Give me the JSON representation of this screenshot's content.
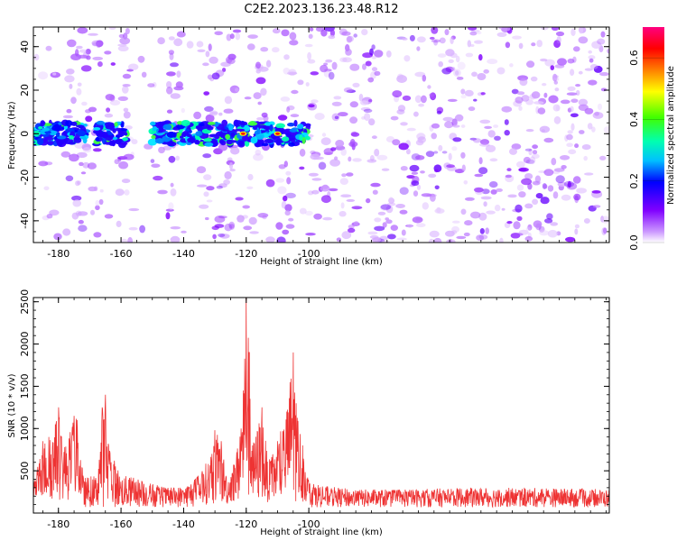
{
  "title": "C2E2.2023.136.23.48.R12",
  "chart_data": [
    {
      "type": "heatmap",
      "xlabel": "Height of straight line (km)",
      "ylabel": "Frequency (Hz)",
      "xlim": [
        -188,
        -4
      ],
      "ylim": [
        -50,
        49
      ],
      "xticks": [
        -180,
        -160,
        -140,
        -120,
        -100
      ],
      "yticks": [
        -40,
        -20,
        0,
        20,
        40
      ],
      "xtick_labels": [
        "-180",
        "-160",
        "-140",
        "-120",
        "-100"
      ],
      "ytick_labels": [
        "-40",
        "-20",
        "0",
        "20",
        "40"
      ],
      "colorbar": {
        "label": "Normalized spectral amplitude",
        "range": [
          0.0,
          0.7
        ],
        "ticks": [
          0.0,
          0.2,
          0.4,
          0.6
        ],
        "tick_labels": [
          "0.0",
          "0.2",
          "0.4",
          "0.6"
        ],
        "colors": [
          "#ffffff",
          "#cc99ff",
          "#8000ff",
          "#0000ff",
          "#00c0ff",
          "#00ffb0",
          "#40ff00",
          "#ffff00",
          "#ff8000",
          "#ff0000",
          "#ff0080"
        ]
      },
      "band": {
        "center_frequency": 0,
        "half_width_hz": 5,
        "segments": [
          [
            -188,
            -171
          ],
          [
            -168,
            -158
          ],
          [
            -150,
            -100
          ]
        ],
        "peak_near_km": [
          -110,
          -121
        ]
      },
      "vertical_streaks_km": [
        -175,
        -170,
        -158,
        -143,
        -131,
        -128,
        -124,
        -116,
        -107
      ]
    },
    {
      "type": "line",
      "xlabel": "Height of straight line (km)",
      "ylabel": "SNR (10 * v/v)",
      "xlim": [
        -188,
        -4
      ],
      "ylim": [
        0,
        2550
      ],
      "xticks": [
        -180,
        -160,
        -140,
        -120,
        -100
      ],
      "yticks": [
        500,
        1000,
        1500,
        2000,
        2500
      ],
      "xtick_labels": [
        "-180",
        "-160",
        "-140",
        "-120",
        "-100"
      ],
      "ytick_labels": [
        "500",
        "1000",
        "1500",
        "2000",
        "2500"
      ],
      "series": [
        {
          "name": "SNR",
          "color": "#ee3333",
          "peaks": [
            {
              "x": -188,
              "y": 300
            },
            {
              "x": -185,
              "y": 850
            },
            {
              "x": -183,
              "y": 900
            },
            {
              "x": -181,
              "y": 1050
            },
            {
              "x": -180,
              "y": 1250
            },
            {
              "x": -178,
              "y": 780
            },
            {
              "x": -175,
              "y": 1150
            },
            {
              "x": -174,
              "y": 1100
            },
            {
              "x": -172,
              "y": 420
            },
            {
              "x": -168,
              "y": 450
            },
            {
              "x": -166,
              "y": 1250
            },
            {
              "x": -165,
              "y": 1400
            },
            {
              "x": -164,
              "y": 800
            },
            {
              "x": -160,
              "y": 450
            },
            {
              "x": -155,
              "y": 420
            },
            {
              "x": -150,
              "y": 350
            },
            {
              "x": -145,
              "y": 300
            },
            {
              "x": -140,
              "y": 320
            },
            {
              "x": -136,
              "y": 420
            },
            {
              "x": -131,
              "y": 700
            },
            {
              "x": -130,
              "y": 980
            },
            {
              "x": -128,
              "y": 850
            },
            {
              "x": -126,
              "y": 420
            },
            {
              "x": -123,
              "y": 720
            },
            {
              "x": -121,
              "y": 1450
            },
            {
              "x": -120,
              "y": 2550
            },
            {
              "x": -119,
              "y": 1900
            },
            {
              "x": -118,
              "y": 800
            },
            {
              "x": -115,
              "y": 1250
            },
            {
              "x": -113,
              "y": 600
            },
            {
              "x": -110,
              "y": 850
            },
            {
              "x": -107,
              "y": 1200
            },
            {
              "x": -106,
              "y": 1550
            },
            {
              "x": -105,
              "y": 1900
            },
            {
              "x": -104,
              "y": 1300
            },
            {
              "x": -102,
              "y": 800
            },
            {
              "x": -100,
              "y": 400
            },
            {
              "x": -95,
              "y": 320
            },
            {
              "x": -85,
              "y": 280
            },
            {
              "x": -70,
              "y": 280
            },
            {
              "x": -50,
              "y": 300
            },
            {
              "x": -30,
              "y": 300
            },
            {
              "x": -4,
              "y": 280
            }
          ]
        }
      ]
    }
  ]
}
